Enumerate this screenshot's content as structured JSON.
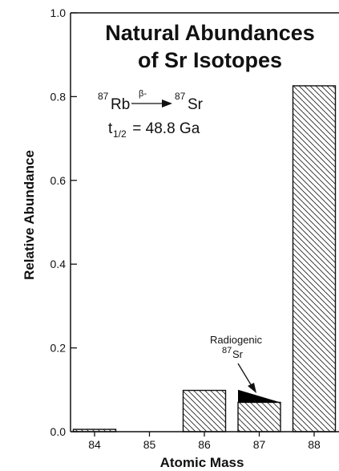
{
  "chart_data": {
    "type": "bar",
    "title_line1": "Natural Abundances",
    "title_line2": "of Sr Isotopes",
    "xlabel": "Atomic Mass",
    "ylabel": "Relative Abundance",
    "ylim": [
      0,
      1.0
    ],
    "yticks": [
      "0.0",
      "0.2",
      "0.4",
      "0.6",
      "0.8",
      "1.0"
    ],
    "ytick_values": [
      0,
      0.2,
      0.4,
      0.6,
      0.8,
      1.0
    ],
    "categories": [
      "84",
      "85",
      "86",
      "87",
      "88"
    ],
    "values": [
      0.0056,
      0,
      0.0986,
      0.07,
      0.8258
    ],
    "radiogenic": {
      "category": "87",
      "extra_value": 0.03,
      "label_line1": "Radiogenic",
      "label_sup": "87",
      "label_elem": "Sr"
    },
    "decay": {
      "parent_mass": "87",
      "parent": "Rb",
      "arrow_label": "β-",
      "daughter_mass": "87",
      "daughter": "Sr",
      "half_life_sym": "t",
      "half_life_sub": "1/2",
      "half_life_value": " = 48.8 Ga"
    },
    "grid": false,
    "legend": "none"
  }
}
